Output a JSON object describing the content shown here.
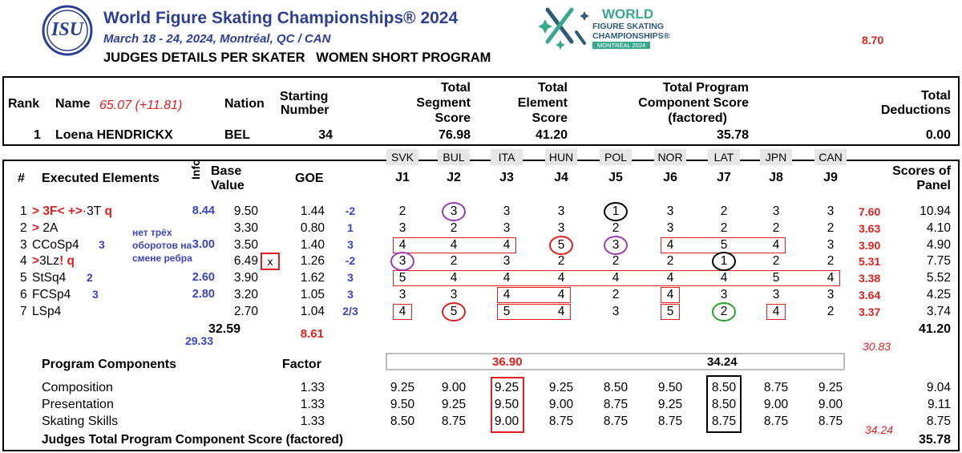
{
  "header": {
    "logo_text": "ISU",
    "title": "World Figure Skating Championships® 2024",
    "subtitle": "March 18 - 24, 2024, Montréal, QC / CAN",
    "report_title": "JUDGES DETAILS PER SKATER   WOMEN SHORT PROGRAM",
    "event_logo_line1": "WORLD",
    "event_logo_line2": "FIGURE SKATING",
    "event_logo_line3": "CHAMPIONSHIPS®",
    "event_logo_line4": "MONTRÉAL 2024",
    "annotation_top_right": "8.70",
    "colors": {
      "title_blue": "#2d3f95",
      "annot_red": "#e0201e",
      "annot_blue": "#3a43c4",
      "logo_teal": "#3aa88f"
    }
  },
  "summary": {
    "h_rank": "Rank",
    "h_name": "Name",
    "h_nation": "Nation",
    "h_start1": "Starting",
    "h_start2": "Number",
    "h_tss1": "Total",
    "h_tss2": "Segment",
    "h_tss3": "Score",
    "h_tes1": "Total",
    "h_tes2": "Element",
    "h_tes3": "Score",
    "h_pcs1": "Total Program",
    "h_pcs2": "Component Score",
    "h_pcs3": "(factored)",
    "h_ded1": "Total",
    "h_ded2": "Deductions",
    "name_annotation": "65.07 (+11.81)",
    "rank": "1",
    "name": "Loena HENDRICKX",
    "nation": "BEL",
    "starting_number": "34",
    "tss": "76.98",
    "tes": "41.20",
    "pcs": "35.78",
    "deductions": "0.00"
  },
  "judge_countries": [
    "SVK",
    "BUL",
    "ITA",
    "HUN",
    "POL",
    "NOR",
    "LAT",
    "JPN",
    "CAN"
  ],
  "judge_labels": [
    "J1",
    "J2",
    "J3",
    "J4",
    "J5",
    "J6",
    "J7",
    "J8",
    "J9"
  ],
  "elements_header": {
    "num": "#",
    "executed": "Executed Elements",
    "info": "Info",
    "base1": "Base",
    "base2": "Value",
    "goe": "GOE",
    "sop1": "Scores of",
    "sop2": "Panel"
  },
  "elements": [
    {
      "n": "1",
      "pre": "> 3F< ",
      "mid": "+>",
      "name": "·3T",
      "suf": " q",
      "info": "",
      "info_red": "8.44",
      "base": "9.50",
      "goe": "1.44",
      "annot": "-2",
      "scores": [
        "2",
        "3",
        "3",
        "3",
        "1",
        "3",
        "2",
        "3",
        "3"
      ],
      "red_annot": "7.60",
      "panel": "10.94"
    },
    {
      "n": "2",
      "pre": "> ",
      "mid": "",
      "name": "2A",
      "suf": "",
      "info": "",
      "info_red": "",
      "base": "3.30",
      "goe": "0.80",
      "annot": "1",
      "scores": [
        "3",
        "2",
        "3",
        "3",
        "2",
        "3",
        "2",
        "2",
        "2"
      ],
      "red_annot": "3.63",
      "panel": "4.10"
    },
    {
      "n": "3",
      "pre": "",
      "mid": "",
      "name": "CCoSp4",
      "suf": "",
      "info": "3",
      "info_red": "3.00",
      "base": "3.50",
      "goe": "1.40",
      "annot": "3",
      "scores": [
        "4",
        "4",
        "4",
        "5",
        "3",
        "4",
        "5",
        "4",
        "3"
      ],
      "red_annot": "3.90",
      "panel": "4.90"
    },
    {
      "n": "4",
      "pre": ">",
      "mid": "",
      "name": "3Lz",
      "suf": "! q",
      "info": "",
      "info_red": "x",
      "base": "6.49",
      "goe": "1.26",
      "annot": "-2",
      "scores": [
        "3",
        "2",
        "3",
        "2",
        "2",
        "2",
        "1",
        "2",
        "2"
      ],
      "red_annot": "5.31",
      "panel": "7.75"
    },
    {
      "n": "5",
      "pre": "",
      "mid": "",
      "name": "StSq4",
      "suf": "",
      "info": "2",
      "info_red": "2.60",
      "base": "3.90",
      "goe": "1.62",
      "annot": "3",
      "scores": [
        "5",
        "4",
        "4",
        "4",
        "4",
        "4",
        "4",
        "5",
        "4"
      ],
      "red_annot": "3.38",
      "panel": "5.52"
    },
    {
      "n": "6",
      "pre": "",
      "mid": "",
      "name": "FCSp4",
      "suf": "",
      "info": "3",
      "info_red": "2.80",
      "base": "3.20",
      "goe": "1.05",
      "annot": "3",
      "scores": [
        "3",
        "3",
        "4",
        "4",
        "2",
        "4",
        "3",
        "3",
        "3"
      ],
      "red_annot": "3.64",
      "panel": "4.25"
    },
    {
      "n": "7",
      "pre": "",
      "mid": "",
      "name": "LSp4",
      "suf": "",
      "info": "",
      "info_red": "",
      "base": "2.70",
      "goe": "1.04",
      "annot": "2/3",
      "scores": [
        "4",
        "5",
        "5",
        "4",
        "3",
        "5",
        "2",
        "4",
        "2"
      ],
      "red_annot": "3.37",
      "panel": "3.74"
    }
  ],
  "russian_note": [
    "нет трёх",
    "оборотов на",
    "смене ребра"
  ],
  "element_totals": {
    "base": "32.59",
    "goe": "8.61",
    "panel": "41.20",
    "blue_annot": "29.33",
    "red_annot": "30.83"
  },
  "pc_header": {
    "title": "Program Components",
    "factor": "Factor",
    "group1": "36.90",
    "group2": "34.24"
  },
  "program_components": [
    {
      "name": "Composition",
      "factor": "1.33",
      "scores": [
        "9.25",
        "9.00",
        "9.25",
        "9.25",
        "8.50",
        "9.50",
        "8.50",
        "8.75",
        "9.25"
      ],
      "panel": "9.04"
    },
    {
      "name": "Presentation",
      "factor": "1.33",
      "scores": [
        "9.50",
        "9.25",
        "9.50",
        "9.00",
        "8.75",
        "9.25",
        "8.50",
        "9.00",
        "9.00"
      ],
      "panel": "9.11"
    },
    {
      "name": "Skating Skills",
      "factor": "1.33",
      "scores": [
        "8.50",
        "8.75",
        "9.00",
        "8.75",
        "8.75",
        "8.75",
        "8.75",
        "8.75",
        "8.75"
      ],
      "panel": "8.75"
    }
  ],
  "pc_total": {
    "label": "Judges Total Program Component Score (factored)",
    "value": "35.78",
    "red_annot": "34.24"
  }
}
